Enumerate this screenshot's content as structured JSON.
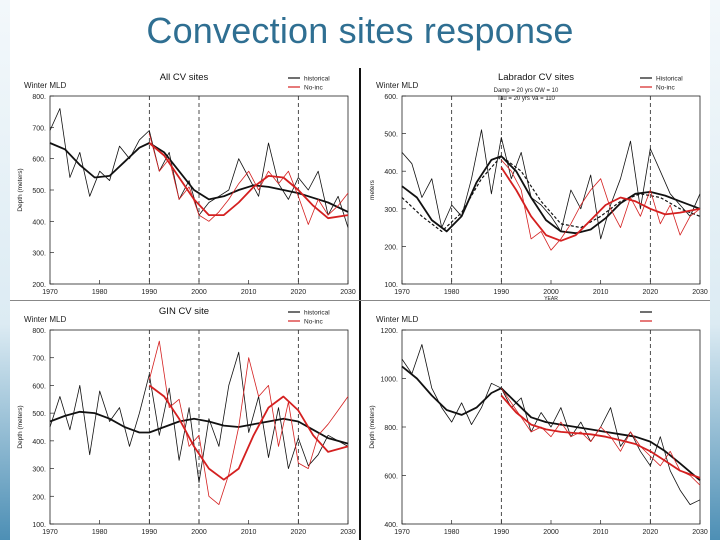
{
  "slide": {
    "title": "Convection sites response"
  },
  "colors": {
    "historical": "#111111",
    "noinc": "#d42020",
    "title": "#2f6f92"
  },
  "chart_data": [
    {
      "type": "line",
      "title": "All CV sites",
      "corner_label": "Winter MLD",
      "ylabel": "Depth (meters)",
      "ylim": [
        200,
        800
      ],
      "yticks": [
        200,
        300,
        400,
        500,
        600,
        700,
        800
      ],
      "ytick_labels": [
        "200.",
        "300.",
        "400.",
        "500.",
        "600.",
        "700.",
        "800."
      ],
      "xlim": [
        1970,
        2030
      ],
      "xticks": [
        1970,
        1980,
        1990,
        2000,
        2010,
        2020,
        2030
      ],
      "vlines": [
        1990,
        2000,
        2020
      ],
      "legend": [
        "historical",
        "No-inc"
      ],
      "series": [
        {
          "name": "historical raw",
          "color": "#111111",
          "style": "thin",
          "x": [
            1970,
            1972,
            1974,
            1976,
            1978,
            1980,
            1982,
            1984,
            1986,
            1988,
            1990,
            1992,
            1994,
            1996,
            1998,
            2000,
            2002,
            2004,
            2006,
            2008,
            2010,
            2012,
            2014,
            2016,
            2018,
            2020,
            2022,
            2024,
            2026,
            2028,
            2030
          ],
          "y": [
            690,
            760,
            540,
            620,
            480,
            560,
            530,
            640,
            600,
            660,
            690,
            560,
            620,
            470,
            530,
            420,
            460,
            480,
            500,
            600,
            540,
            480,
            650,
            520,
            470,
            540,
            500,
            560,
            420,
            480,
            380
          ]
        },
        {
          "name": "historical smooth",
          "color": "#111111",
          "style": "thick",
          "x": [
            1970,
            1973,
            1976,
            1979,
            1982,
            1985,
            1988,
            1990,
            1993,
            1996,
            1999,
            2002,
            2005,
            2008,
            2011,
            2014,
            2017,
            2020,
            2023,
            2026,
            2030
          ],
          "y": [
            650,
            630,
            580,
            540,
            545,
            590,
            635,
            650,
            620,
            560,
            500,
            470,
            480,
            500,
            515,
            510,
            500,
            490,
            475,
            460,
            430
          ]
        },
        {
          "name": "No-inc raw",
          "color": "#d42020",
          "style": "thin",
          "x": [
            1990,
            1992,
            1994,
            1996,
            1998,
            2000,
            2002,
            2004,
            2006,
            2008,
            2010,
            2012,
            2014,
            2016,
            2018,
            2020,
            2022,
            2024,
            2026,
            2028,
            2030
          ],
          "y": [
            680,
            560,
            600,
            470,
            510,
            420,
            400,
            430,
            470,
            520,
            560,
            500,
            560,
            520,
            560,
            480,
            390,
            470,
            420,
            450,
            490
          ]
        },
        {
          "name": "No-inc smooth",
          "color": "#d42020",
          "style": "thick",
          "x": [
            1990,
            1993,
            1996,
            1999,
            2002,
            2005,
            2008,
            2011,
            2014,
            2017,
            2020,
            2023,
            2026,
            2030
          ],
          "y": [
            650,
            610,
            540,
            470,
            420,
            420,
            460,
            510,
            545,
            540,
            500,
            450,
            410,
            420
          ]
        }
      ]
    },
    {
      "type": "line",
      "title": "Labrador CV sites",
      "corner_label": "Winter MLD",
      "ylabel": "meters",
      "info_lines": [
        "Damp = 20 yrs   OW = 10",
        "Tau = 20 yrs    Va = 110"
      ],
      "ylim": [
        100,
        600
      ],
      "yticks": [
        100,
        200,
        300,
        400,
        500,
        600
      ],
      "ytick_labels": [
        "100.",
        "200.",
        "300.",
        "400.",
        "500.",
        "600."
      ],
      "xlim": [
        1970,
        2030
      ],
      "xticks": [
        1970,
        1980,
        1990,
        2000,
        2010,
        2020,
        2030
      ],
      "xlabel": "YEAR",
      "vlines": [
        1980,
        1990,
        2020
      ],
      "legend": [
        "Historical",
        "No-inc"
      ],
      "series": [
        {
          "name": "historical raw",
          "color": "#111111",
          "style": "thin",
          "x": [
            1970,
            1972,
            1974,
            1976,
            1978,
            1980,
            1982,
            1984,
            1986,
            1988,
            1990,
            1992,
            1994,
            1996,
            1998,
            2000,
            2002,
            2004,
            2006,
            2008,
            2010,
            2012,
            2014,
            2016,
            2018,
            2020,
            2022,
            2024,
            2026,
            2028,
            2030
          ],
          "y": [
            450,
            420,
            330,
            380,
            250,
            310,
            280,
            380,
            510,
            340,
            490,
            380,
            450,
            330,
            310,
            280,
            240,
            350,
            300,
            390,
            220,
            310,
            380,
            480,
            300,
            460,
            400,
            340,
            310,
            280,
            340
          ]
        },
        {
          "name": "historical smooth",
          "color": "#111111",
          "style": "thick",
          "x": [
            1970,
            1973,
            1976,
            1979,
            1982,
            1985,
            1988,
            1990,
            1993,
            1996,
            1999,
            2002,
            2005,
            2008,
            2011,
            2014,
            2017,
            2020,
            2023,
            2026,
            2030
          ],
          "y": [
            360,
            330,
            270,
            240,
            280,
            370,
            430,
            440,
            400,
            330,
            270,
            240,
            235,
            245,
            275,
            315,
            340,
            345,
            335,
            320,
            300
          ]
        },
        {
          "name": "historical dashed",
          "color": "#111111",
          "style": "dashed",
          "x": [
            1970,
            1974,
            1978,
            1982,
            1986,
            1990,
            1994,
            1998,
            2002,
            2006,
            2010,
            2014,
            2018,
            2022,
            2026,
            2030
          ],
          "y": [
            330,
            280,
            240,
            290,
            380,
            440,
            400,
            320,
            260,
            250,
            280,
            320,
            340,
            330,
            300,
            280
          ]
        },
        {
          "name": "No-inc raw",
          "color": "#d42020",
          "style": "thin",
          "x": [
            1990,
            1992,
            1994,
            1996,
            1998,
            2000,
            2002,
            2004,
            2006,
            2008,
            2010,
            2012,
            2014,
            2016,
            2018,
            2020,
            2022,
            2024,
            2026,
            2028,
            2030
          ],
          "y": [
            430,
            400,
            350,
            220,
            240,
            190,
            220,
            260,
            310,
            350,
            380,
            300,
            250,
            330,
            280,
            350,
            260,
            310,
            230,
            280,
            300
          ]
        },
        {
          "name": "No-inc smooth",
          "color": "#d42020",
          "style": "thick",
          "x": [
            1990,
            1993,
            1996,
            1999,
            2002,
            2005,
            2008,
            2011,
            2014,
            2017,
            2020,
            2023,
            2026,
            2030
          ],
          "y": [
            410,
            350,
            280,
            230,
            215,
            230,
            270,
            310,
            330,
            320,
            300,
            285,
            290,
            300
          ]
        }
      ]
    },
    {
      "type": "line",
      "title": "GIN CV site",
      "corner_label": "Winter MLD",
      "ylabel": "Depth (meters)",
      "ylim": [
        100,
        800
      ],
      "yticks": [
        100,
        200,
        300,
        400,
        500,
        600,
        700,
        800
      ],
      "ytick_labels": [
        "100.",
        "200.",
        "300.",
        "400.",
        "500.",
        "600.",
        "700.",
        "800."
      ],
      "xlim": [
        1970,
        2030
      ],
      "xticks": [
        1970,
        1980,
        1990,
        2000,
        2010,
        2020,
        2030
      ],
      "vlines": [
        1990,
        2000,
        2020
      ],
      "legend": [
        "historical",
        "No-inc"
      ],
      "series": [
        {
          "name": "historical raw",
          "color": "#111111",
          "style": "thin",
          "x": [
            1970,
            1972,
            1974,
            1976,
            1978,
            1980,
            1982,
            1984,
            1986,
            1988,
            1990,
            1992,
            1994,
            1996,
            1998,
            2000,
            2002,
            2004,
            2006,
            2008,
            2010,
            2012,
            2014,
            2016,
            2018,
            2020,
            2022,
            2024,
            2026,
            2028,
            2030
          ],
          "y": [
            450,
            560,
            440,
            600,
            350,
            580,
            470,
            520,
            380,
            500,
            640,
            420,
            590,
            330,
            520,
            250,
            480,
            380,
            600,
            720,
            430,
            560,
            340,
            520,
            300,
            410,
            310,
            350,
            420,
            400,
            380
          ]
        },
        {
          "name": "historical smooth",
          "color": "#111111",
          "style": "thick",
          "x": [
            1970,
            1973,
            1976,
            1979,
            1982,
            1985,
            1988,
            1990,
            1993,
            1996,
            1999,
            2002,
            2005,
            2008,
            2011,
            2014,
            2017,
            2020,
            2023,
            2026,
            2030
          ],
          "y": [
            470,
            490,
            505,
            500,
            480,
            450,
            430,
            430,
            450,
            470,
            480,
            470,
            455,
            450,
            460,
            470,
            480,
            470,
            440,
            410,
            390
          ]
        },
        {
          "name": "No-inc raw",
          "color": "#d42020",
          "style": "thin",
          "x": [
            1990,
            1992,
            1994,
            1996,
            1998,
            2000,
            2002,
            2004,
            2006,
            2008,
            2010,
            2012,
            2014,
            2016,
            2018,
            2020,
            2022,
            2024,
            2026,
            2028,
            2030
          ],
          "y": [
            620,
            760,
            520,
            550,
            380,
            420,
            200,
            170,
            280,
            450,
            700,
            560,
            600,
            380,
            540,
            320,
            300,
            420,
            460,
            510,
            560
          ]
        },
        {
          "name": "No-inc smooth",
          "color": "#d42020",
          "style": "thick",
          "x": [
            1990,
            1993,
            1996,
            1999,
            2002,
            2005,
            2008,
            2011,
            2014,
            2017,
            2020,
            2023,
            2026,
            2030
          ],
          "y": [
            600,
            560,
            480,
            380,
            300,
            260,
            300,
            420,
            520,
            560,
            510,
            420,
            360,
            380
          ]
        }
      ]
    },
    {
      "type": "line",
      "title": "",
      "corner_label": "Winter MLD",
      "ylabel": "Depth (meters)",
      "ylim": [
        400,
        1200
      ],
      "yticks": [
        400,
        600,
        800,
        1000,
        1200
      ],
      "ytick_labels": [
        "400.",
        "600.",
        "800.",
        "1000.",
        "1200."
      ],
      "xlim": [
        1970,
        2030
      ],
      "xticks": [
        1970,
        1980,
        1990,
        2000,
        2010,
        2020,
        2030
      ],
      "vlines": [
        1990,
        2020
      ],
      "legend": [
        "",
        ""
      ],
      "series": [
        {
          "name": "historical raw",
          "color": "#111111",
          "style": "thin",
          "x": [
            1970,
            1972,
            1974,
            1976,
            1978,
            1980,
            1982,
            1984,
            1986,
            1988,
            1990,
            1992,
            1994,
            1996,
            1998,
            2000,
            2002,
            2004,
            2006,
            2008,
            2010,
            2012,
            2014,
            2016,
            2018,
            2020,
            2022,
            2024,
            2026,
            2028,
            2030
          ],
          "y": [
            1080,
            1020,
            1140,
            960,
            880,
            820,
            900,
            810,
            880,
            980,
            960,
            880,
            920,
            780,
            860,
            800,
            880,
            760,
            820,
            740,
            800,
            880,
            720,
            780,
            700,
            640,
            760,
            620,
            540,
            480,
            500
          ]
        },
        {
          "name": "historical smooth",
          "color": "#111111",
          "style": "thick",
          "x": [
            1970,
            1973,
            1976,
            1979,
            1982,
            1985,
            1988,
            1990,
            1993,
            1996,
            1999,
            2002,
            2005,
            2008,
            2011,
            2014,
            2017,
            2020,
            2023,
            2026,
            2030
          ],
          "y": [
            1050,
            1000,
            930,
            870,
            850,
            880,
            940,
            960,
            900,
            840,
            820,
            810,
            800,
            790,
            780,
            770,
            760,
            740,
            700,
            650,
            580
          ]
        },
        {
          "name": "No-inc raw",
          "color": "#d42020",
          "style": "thin",
          "x": [
            1990,
            1992,
            1994,
            1996,
            1998,
            2000,
            2002,
            2004,
            2006,
            2008,
            2010,
            2012,
            2014,
            2016,
            2018,
            2020,
            2022,
            2024,
            2026,
            2028,
            2030
          ],
          "y": [
            960,
            900,
            840,
            780,
            800,
            760,
            820,
            760,
            780,
            740,
            800,
            760,
            700,
            780,
            720,
            680,
            640,
            700,
            620,
            600,
            560
          ]
        },
        {
          "name": "No-inc smooth",
          "color": "#d42020",
          "style": "thick",
          "x": [
            1990,
            1993,
            1996,
            1999,
            2002,
            2005,
            2008,
            2011,
            2014,
            2017,
            2020,
            2023,
            2026,
            2030
          ],
          "y": [
            930,
            860,
            810,
            790,
            780,
            775,
            770,
            760,
            745,
            730,
            700,
            660,
            620,
            590
          ]
        }
      ]
    }
  ]
}
